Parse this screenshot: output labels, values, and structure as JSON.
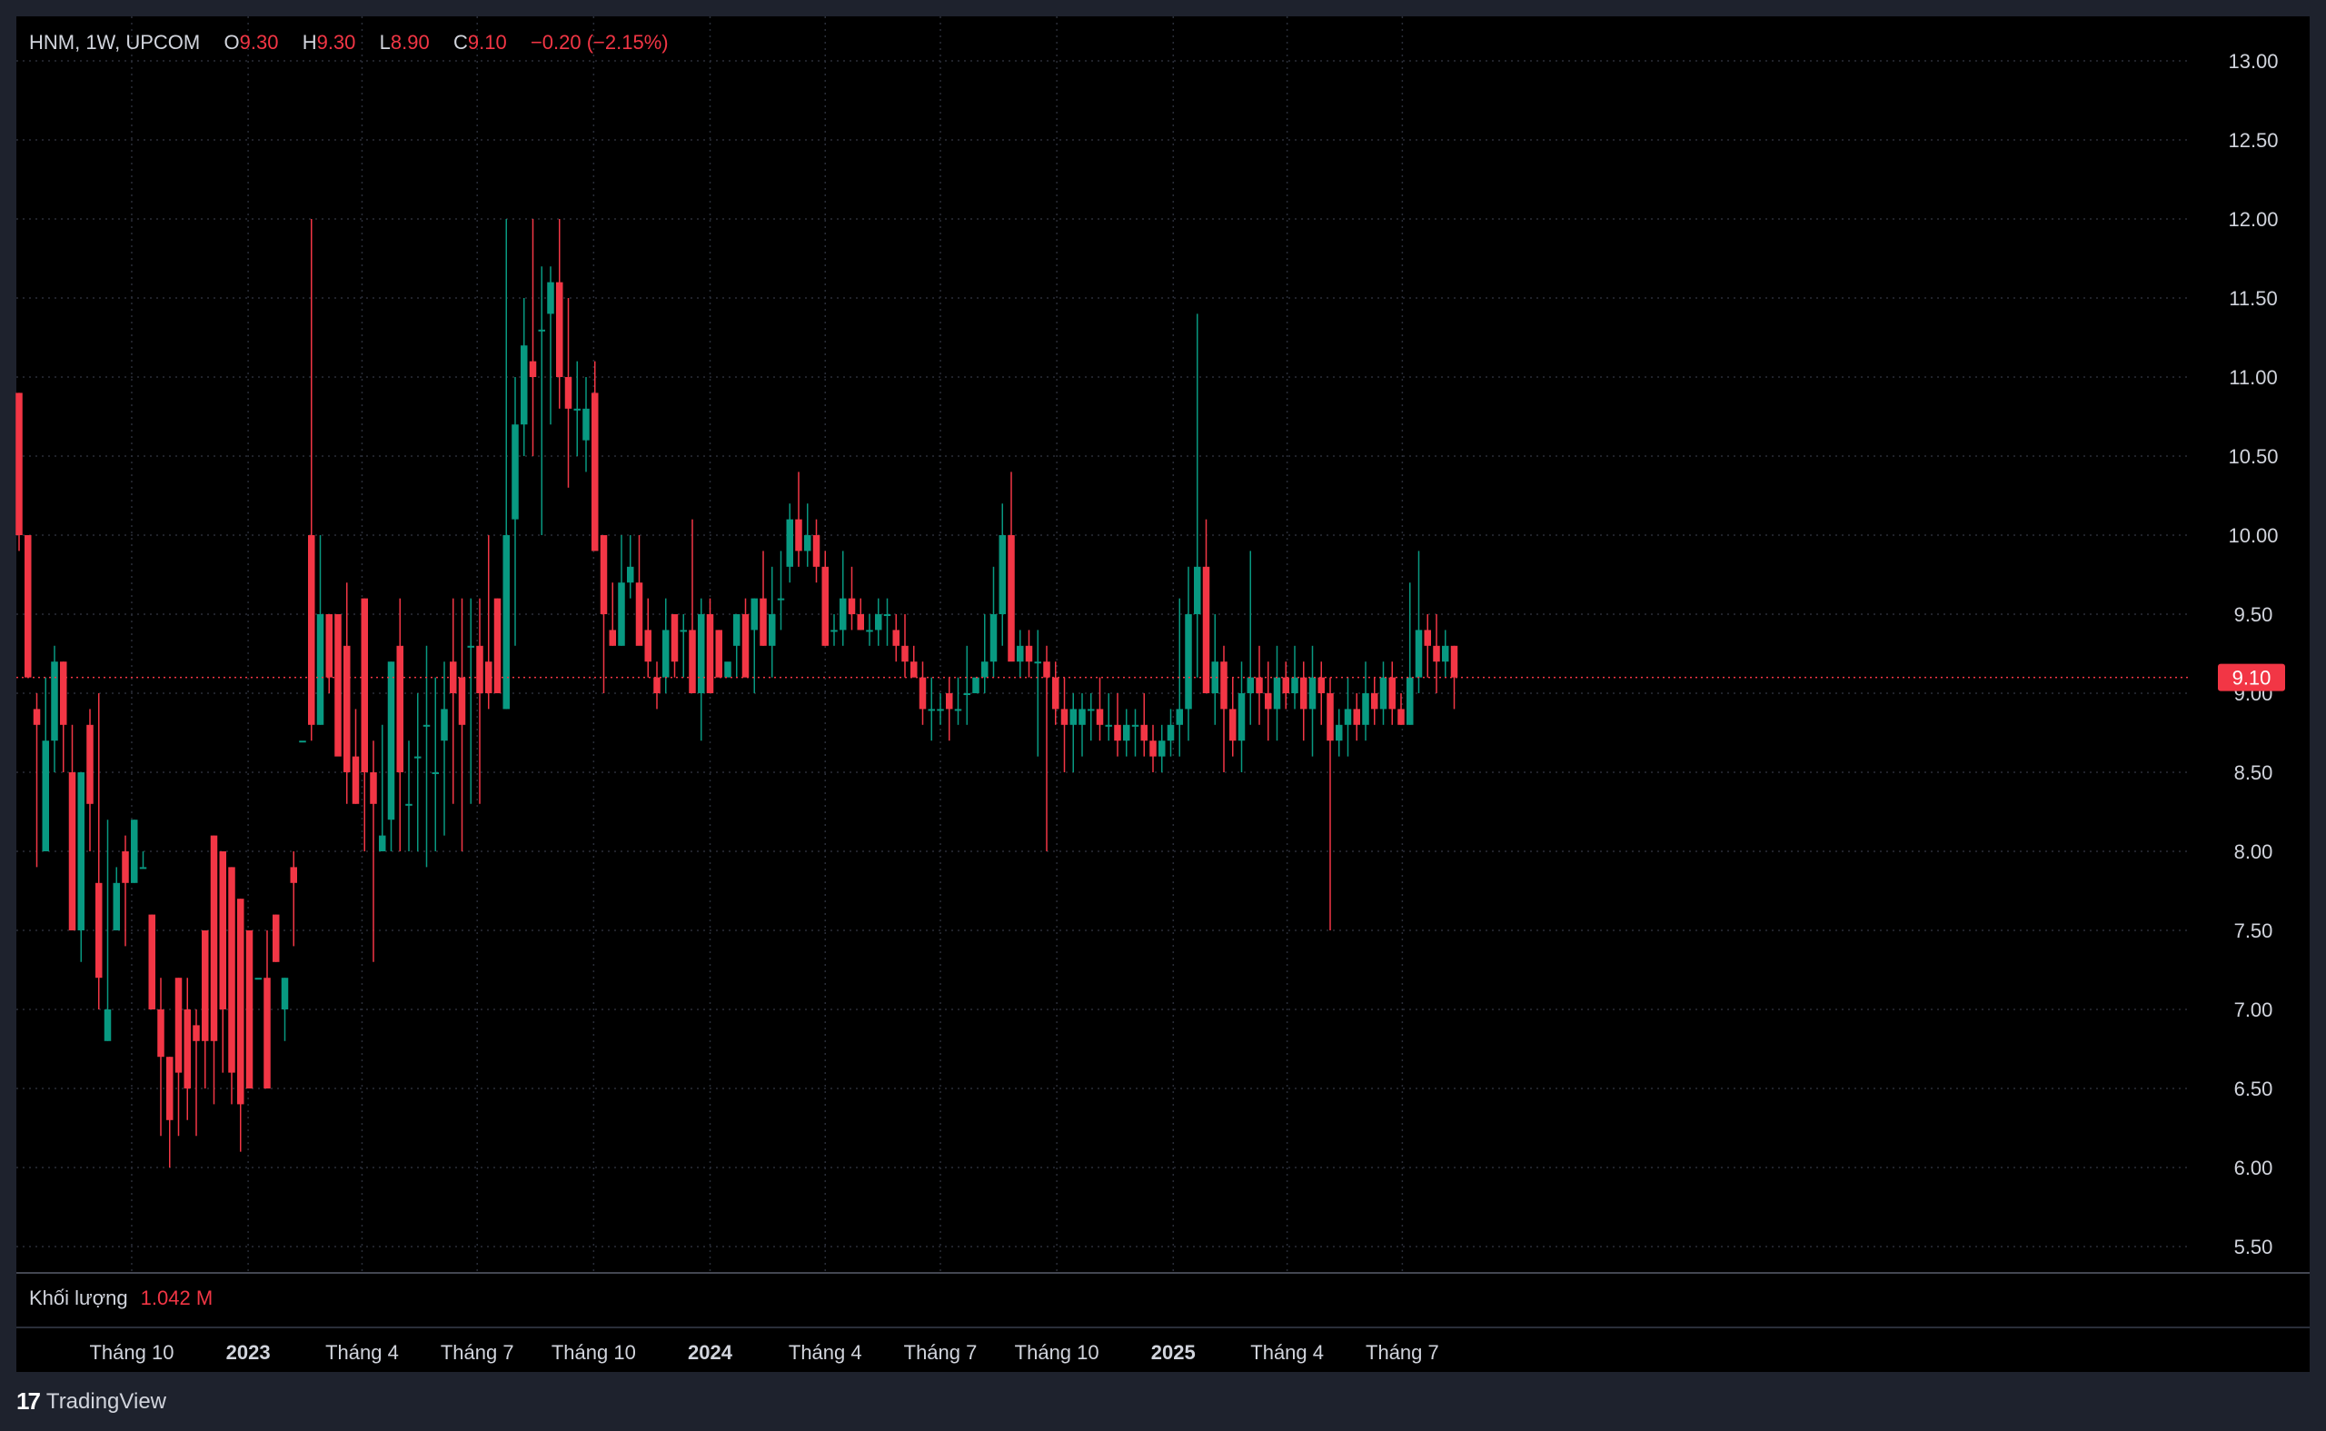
{
  "legend": {
    "symbol": "HNM, 1W, UPCOM",
    "open_label": "O",
    "open": "9.30",
    "high_label": "H",
    "high": "9.30",
    "low_label": "L",
    "low": "8.90",
    "close_label": "C",
    "close": "9.10",
    "change": "−0.20 (−2.15%)"
  },
  "volume": {
    "label": "Khối lượng",
    "value": "1.042 M"
  },
  "brand": {
    "logo": "17",
    "name": "TradingView"
  },
  "colors": {
    "up": "#089981",
    "down": "#f23645",
    "background": "#000000",
    "frame": "#1e222d",
    "grid": "#2a2e39",
    "text": "#d1d4dc"
  },
  "chart_data": {
    "type": "candlestick",
    "interval": "1W",
    "ylim": [
      5.25,
      13.25
    ],
    "y_ticks": [
      "13.00",
      "12.50",
      "12.00",
      "11.50",
      "11.00",
      "10.50",
      "10.00",
      "9.50",
      "9.00",
      "8.50",
      "8.00",
      "7.50",
      "7.00",
      "6.50",
      "6.00",
      "5.50"
    ],
    "x_ticks": [
      {
        "label": "Tháng 10",
        "bold": false,
        "date": "2022-10-01"
      },
      {
        "label": "2023",
        "bold": true,
        "date": "2023-01-01"
      },
      {
        "label": "Tháng 4",
        "bold": false,
        "date": "2023-04-01"
      },
      {
        "label": "Tháng 7",
        "bold": false,
        "date": "2023-07-01"
      },
      {
        "label": "Tháng 10",
        "bold": false,
        "date": "2023-10-01"
      },
      {
        "label": "2024",
        "bold": true,
        "date": "2024-01-01"
      },
      {
        "label": "Tháng 4",
        "bold": false,
        "date": "2024-04-01"
      },
      {
        "label": "Tháng 7",
        "bold": false,
        "date": "2024-07-01"
      },
      {
        "label": "Tháng 10",
        "bold": false,
        "date": "2024-10-01"
      },
      {
        "label": "2025",
        "bold": true,
        "date": "2025-01-01"
      },
      {
        "label": "Tháng 4",
        "bold": false,
        "date": "2025-04-01"
      },
      {
        "label": "Tháng 7",
        "bold": false,
        "date": "2025-07-01"
      }
    ],
    "last_price": "9.10",
    "last_price_value": 9.1,
    "candles_ohlc": [
      [
        10.9,
        10.9,
        9.9,
        10.0
      ],
      [
        10.0,
        10.0,
        9.1,
        9.1
      ],
      [
        8.9,
        9.0,
        7.9,
        8.8
      ],
      [
        8.0,
        9.1,
        8.0,
        8.7
      ],
      [
        8.7,
        9.3,
        8.5,
        9.2
      ],
      [
        9.2,
        9.2,
        8.5,
        8.8
      ],
      [
        8.5,
        8.8,
        7.5,
        7.5
      ],
      [
        7.5,
        8.5,
        7.3,
        8.5
      ],
      [
        8.8,
        8.9,
        8.0,
        8.3
      ],
      [
        7.8,
        9.0,
        7.0,
        7.2
      ],
      [
        6.8,
        8.2,
        6.8,
        7.0
      ],
      [
        7.5,
        7.9,
        7.5,
        7.8
      ],
      [
        8.0,
        8.1,
        7.4,
        7.8
      ],
      [
        7.8,
        8.2,
        7.8,
        8.2
      ],
      [
        7.9,
        8.0,
        7.9,
        7.9
      ],
      [
        7.6,
        7.6,
        7.0,
        7.0
      ],
      [
        7.0,
        7.2,
        6.2,
        6.7
      ],
      [
        6.7,
        6.7,
        6.0,
        6.3
      ],
      [
        7.2,
        7.2,
        6.2,
        6.6
      ],
      [
        7.0,
        7.2,
        6.3,
        6.5
      ],
      [
        6.9,
        7.0,
        6.2,
        6.8
      ],
      [
        7.5,
        7.5,
        6.5,
        6.8
      ],
      [
        8.1,
        8.1,
        6.4,
        6.8
      ],
      [
        8.0,
        8.0,
        6.6,
        7.0
      ],
      [
        7.9,
        7.9,
        6.4,
        6.6
      ],
      [
        7.7,
        7.7,
        6.1,
        6.4
      ],
      [
        7.5,
        7.5,
        6.5,
        6.5
      ],
      [
        7.2,
        7.2,
        7.2,
        7.2
      ],
      [
        7.2,
        7.5,
        6.6,
        6.5
      ],
      [
        7.6,
        7.6,
        7.3,
        7.3
      ],
      [
        7.0,
        7.2,
        6.8,
        7.2
      ],
      [
        7.9,
        8.0,
        7.4,
        7.8
      ],
      [
        8.7,
        8.7,
        8.7,
        8.7
      ],
      [
        10.0,
        12.0,
        8.7,
        8.8
      ],
      [
        8.8,
        10.0,
        8.8,
        9.5
      ],
      [
        9.5,
        9.5,
        9.0,
        9.1
      ],
      [
        9.5,
        9.5,
        8.7,
        8.6
      ],
      [
        9.3,
        9.7,
        8.3,
        8.5
      ],
      [
        8.6,
        8.9,
        8.3,
        8.3
      ],
      [
        9.6,
        9.6,
        8.0,
        8.5
      ],
      [
        8.5,
        8.7,
        7.3,
        8.3
      ],
      [
        8.0,
        8.8,
        8.0,
        8.1
      ],
      [
        8.2,
        9.2,
        8.0,
        9.2
      ],
      [
        9.3,
        9.6,
        8.0,
        8.5
      ],
      [
        8.3,
        8.7,
        8.0,
        8.3
      ],
      [
        8.6,
        9.0,
        8.0,
        8.6
      ],
      [
        8.8,
        9.3,
        7.9,
        8.8
      ],
      [
        8.5,
        9.1,
        8.0,
        8.5
      ],
      [
        8.7,
        9.2,
        8.1,
        8.9
      ],
      [
        9.2,
        9.6,
        8.3,
        9.0
      ],
      [
        9.1,
        9.6,
        8.0,
        8.8
      ],
      [
        9.3,
        9.6,
        8.3,
        9.3
      ],
      [
        9.3,
        9.6,
        8.3,
        9.0
      ],
      [
        9.2,
        10.0,
        8.9,
        9.0
      ],
      [
        9.6,
        9.6,
        9.1,
        9.0
      ],
      [
        8.9,
        12.0,
        8.9,
        10.0
      ],
      [
        10.1,
        11.0,
        9.3,
        10.7
      ],
      [
        10.7,
        11.5,
        10.5,
        11.2
      ],
      [
        11.1,
        12.0,
        10.5,
        11.0
      ],
      [
        11.3,
        11.7,
        10.0,
        11.3
      ],
      [
        11.4,
        11.7,
        10.7,
        11.6
      ],
      [
        11.6,
        12.0,
        10.8,
        11.0
      ],
      [
        11.0,
        11.5,
        10.3,
        10.8
      ],
      [
        10.8,
        11.1,
        10.5,
        10.8
      ],
      [
        10.6,
        11.0,
        10.4,
        10.8
      ],
      [
        10.9,
        11.1,
        10.3,
        9.9
      ],
      [
        10.0,
        10.0,
        9.0,
        9.5
      ],
      [
        9.4,
        9.7,
        9.3,
        9.3
      ],
      [
        9.3,
        10.0,
        9.3,
        9.7
      ],
      [
        9.7,
        10.0,
        9.6,
        9.8
      ],
      [
        9.7,
        10.0,
        9.6,
        9.3
      ],
      [
        9.4,
        9.6,
        9.1,
        9.2
      ],
      [
        9.1,
        9.2,
        8.9,
        9.0
      ],
      [
        9.1,
        9.6,
        9.0,
        9.4
      ],
      [
        9.5,
        9.5,
        9.1,
        9.2
      ],
      [
        9.4,
        9.5,
        9.1,
        9.4
      ],
      [
        9.4,
        10.1,
        9.3,
        9.0
      ],
      [
        9.0,
        9.6,
        8.7,
        9.5
      ],
      [
        9.5,
        9.6,
        9.1,
        9.0
      ],
      [
        9.4,
        9.4,
        9.1,
        9.1
      ],
      [
        9.1,
        9.1,
        9.1,
        9.2
      ],
      [
        9.3,
        9.5,
        9.1,
        9.5
      ],
      [
        9.5,
        9.6,
        9.3,
        9.1
      ],
      [
        9.4,
        9.6,
        9.0,
        9.6
      ],
      [
        9.6,
        9.9,
        9.3,
        9.3
      ],
      [
        9.3,
        9.8,
        9.1,
        9.5
      ],
      [
        9.6,
        9.9,
        9.4,
        9.6
      ],
      [
        9.8,
        10.2,
        9.7,
        10.1
      ],
      [
        10.1,
        10.4,
        9.8,
        9.9
      ],
      [
        9.9,
        10.2,
        9.8,
        10.0
      ],
      [
        10.0,
        10.1,
        9.7,
        9.8
      ],
      [
        9.8,
        9.9,
        9.3,
        9.3
      ],
      [
        9.4,
        9.5,
        9.3,
        9.4
      ],
      [
        9.4,
        9.9,
        9.3,
        9.6
      ],
      [
        9.6,
        9.8,
        9.4,
        9.5
      ],
      [
        9.5,
        9.6,
        9.4,
        9.4
      ],
      [
        9.4,
        9.5,
        9.3,
        9.4
      ],
      [
        9.4,
        9.6,
        9.3,
        9.5
      ],
      [
        9.5,
        9.6,
        9.3,
        9.5
      ],
      [
        9.4,
        9.5,
        9.2,
        9.3
      ],
      [
        9.3,
        9.5,
        9.1,
        9.2
      ],
      [
        9.2,
        9.3,
        9.1,
        9.1
      ],
      [
        9.1,
        9.2,
        8.8,
        8.9
      ],
      [
        8.9,
        9.1,
        8.7,
        8.9
      ],
      [
        8.9,
        9.0,
        8.8,
        8.9
      ],
      [
        9.0,
        9.1,
        8.7,
        8.9
      ],
      [
        8.9,
        9.1,
        8.8,
        8.9
      ],
      [
        9.0,
        9.3,
        8.8,
        9.0
      ],
      [
        9.0,
        9.1,
        9.0,
        9.1
      ],
      [
        9.1,
        9.5,
        9.0,
        9.2
      ],
      [
        9.2,
        9.8,
        9.1,
        9.5
      ],
      [
        9.5,
        10.2,
        9.3,
        10.0
      ],
      [
        10.0,
        10.4,
        9.5,
        9.2
      ],
      [
        9.2,
        9.4,
        9.1,
        9.3
      ],
      [
        9.3,
        9.4,
        9.1,
        9.2
      ],
      [
        9.2,
        9.4,
        8.6,
        9.2
      ],
      [
        9.2,
        9.3,
        8.0,
        9.1
      ],
      [
        9.1,
        9.2,
        8.8,
        8.9
      ],
      [
        8.9,
        9.1,
        8.5,
        8.8
      ],
      [
        8.8,
        9.0,
        8.5,
        8.9
      ],
      [
        8.8,
        9.0,
        8.6,
        8.9
      ],
      [
        8.9,
        9.0,
        8.7,
        8.9
      ],
      [
        8.9,
        9.1,
        8.7,
        8.8
      ],
      [
        8.8,
        9.0,
        8.7,
        8.8
      ],
      [
        8.8,
        9.0,
        8.6,
        8.7
      ],
      [
        8.7,
        8.9,
        8.6,
        8.8
      ],
      [
        8.8,
        8.9,
        8.6,
        8.8
      ],
      [
        8.8,
        9.0,
        8.6,
        8.7
      ],
      [
        8.7,
        8.8,
        8.5,
        8.6
      ],
      [
        8.6,
        8.8,
        8.5,
        8.7
      ],
      [
        8.7,
        8.9,
        8.6,
        8.8
      ],
      [
        8.8,
        9.6,
        8.6,
        8.9
      ],
      [
        8.9,
        9.8,
        8.7,
        9.5
      ],
      [
        9.5,
        11.4,
        9.1,
        9.8
      ],
      [
        9.8,
        10.1,
        9.0,
        9.0
      ],
      [
        9.0,
        9.5,
        8.8,
        9.2
      ],
      [
        9.2,
        9.3,
        8.5,
        8.9
      ],
      [
        8.9,
        9.1,
        8.6,
        8.7
      ],
      [
        8.7,
        9.2,
        8.5,
        9.0
      ],
      [
        9.0,
        9.9,
        8.8,
        9.1
      ],
      [
        9.1,
        9.3,
        8.8,
        9.0
      ],
      [
        9.0,
        9.2,
        8.7,
        8.9
      ],
      [
        8.9,
        9.3,
        8.7,
        9.1
      ],
      [
        9.1,
        9.2,
        8.9,
        9.0
      ],
      [
        9.0,
        9.3,
        8.9,
        9.1
      ],
      [
        9.1,
        9.2,
        8.7,
        8.9
      ],
      [
        8.9,
        9.3,
        8.6,
        9.1
      ],
      [
        9.1,
        9.2,
        8.8,
        9.0
      ],
      [
        9.0,
        9.1,
        7.5,
        8.7
      ],
      [
        8.7,
        8.9,
        8.6,
        8.8
      ],
      [
        8.8,
        9.1,
        8.6,
        8.9
      ],
      [
        8.9,
        9.0,
        8.7,
        8.8
      ],
      [
        8.8,
        9.2,
        8.7,
        9.0
      ],
      [
        9.0,
        9.1,
        8.8,
        8.9
      ],
      [
        8.9,
        9.2,
        8.8,
        9.1
      ],
      [
        9.1,
        9.2,
        8.8,
        8.9
      ],
      [
        8.9,
        9.0,
        8.8,
        8.8
      ],
      [
        8.8,
        9.7,
        8.8,
        9.1
      ],
      [
        9.1,
        9.9,
        9.0,
        9.4
      ],
      [
        9.4,
        9.5,
        9.1,
        9.3
      ],
      [
        9.3,
        9.5,
        9.0,
        9.2
      ],
      [
        9.2,
        9.4,
        9.1,
        9.3
      ],
      [
        9.3,
        9.3,
        8.9,
        9.1
      ]
    ]
  }
}
